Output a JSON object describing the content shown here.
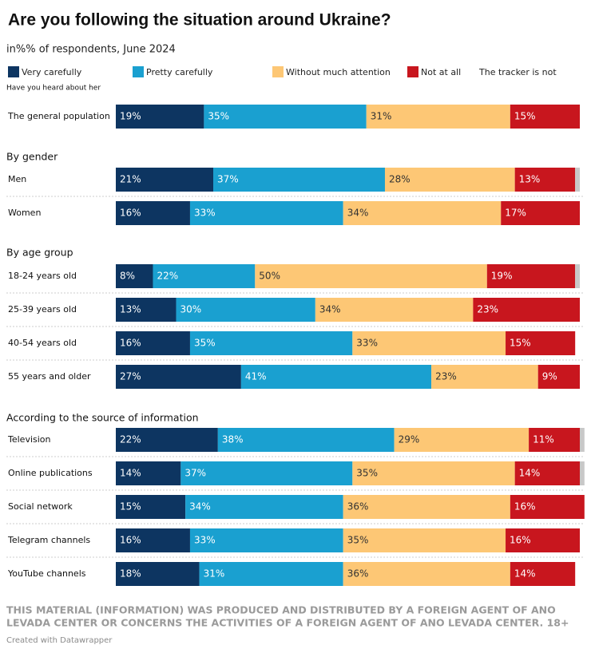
{
  "chart_data": {
    "type": "stacked-bar-horizontal",
    "title": "Are you following the situation around Ukraine?",
    "subtitle": "in%% of respondents, June 2024",
    "note": "Have you heard about her",
    "footer": [
      "THIS MATERIAL (INFORMATION) WAS PRODUCED AND DISTRIBUTED BY A FOREIGN AGENT OF ANO",
      "LEVADA CENTER OR CONCERNS THE ACTIVITIES OF A FOREIGN AGENT OF ANO LEVADA CENTER. 18+"
    ],
    "credit": "Created with Datawrapper",
    "xlim": [
      0,
      100
    ],
    "group_labels": [
      null,
      "By gender",
      null,
      "By age group",
      null,
      null,
      null,
      "According to the source of information",
      null,
      null,
      null,
      null
    ],
    "categories": [
      "The general population",
      "Men",
      "Women",
      "18-24 years old",
      "25-39 years old",
      "40-54 years old",
      "55 years and older",
      "Television",
      "Online publications",
      "Social network",
      "Telegram channels",
      "YouTube channels"
    ],
    "series": [
      {
        "name": "Very carefully",
        "color": "#0d3561",
        "values": [
          19,
          21,
          16,
          8,
          13,
          16,
          27,
          22,
          14,
          15,
          16,
          18
        ],
        "value_labels": [
          "19%",
          "21%",
          "16%",
          "8%",
          "13%",
          "16%",
          "27%",
          "22%",
          "14%",
          "15%",
          "16%",
          "18%"
        ]
      },
      {
        "name": "Pretty carefully",
        "color": "#1aa0d0",
        "values": [
          35,
          37,
          33,
          22,
          30,
          35,
          41,
          38,
          37,
          34,
          33,
          31
        ],
        "value_labels": [
          "35%",
          "37%",
          "33%",
          "22%",
          "30%",
          "35%",
          "41%",
          "38%",
          "37%",
          "34%",
          "33%",
          "31%"
        ]
      },
      {
        "name": "Without much attention",
        "color": "#fdc775",
        "values": [
          31,
          28,
          34,
          50,
          34,
          33,
          23,
          29,
          35,
          36,
          35,
          36
        ],
        "value_labels": [
          "31%",
          "28%",
          "34%",
          "50%",
          "34%",
          "33%",
          "23%",
          "29%",
          "35%",
          "36%",
          "35%",
          "36%"
        ]
      },
      {
        "name": "Not at all",
        "color": "#c8161e",
        "values": [
          15,
          13,
          17,
          19,
          23,
          15,
          9,
          11,
          14,
          16,
          16,
          14
        ],
        "value_labels": [
          "15%",
          "13%",
          "17%",
          "19%",
          "23%",
          "15%",
          "9%",
          "11%",
          "14%",
          "16%",
          "16%",
          "14%"
        ]
      },
      {
        "name": "The tracker is not",
        "color": "#c8c8c8",
        "values": [
          null,
          1,
          null,
          1,
          null,
          null,
          null,
          1,
          1,
          null,
          null,
          null
        ]
      }
    ]
  }
}
